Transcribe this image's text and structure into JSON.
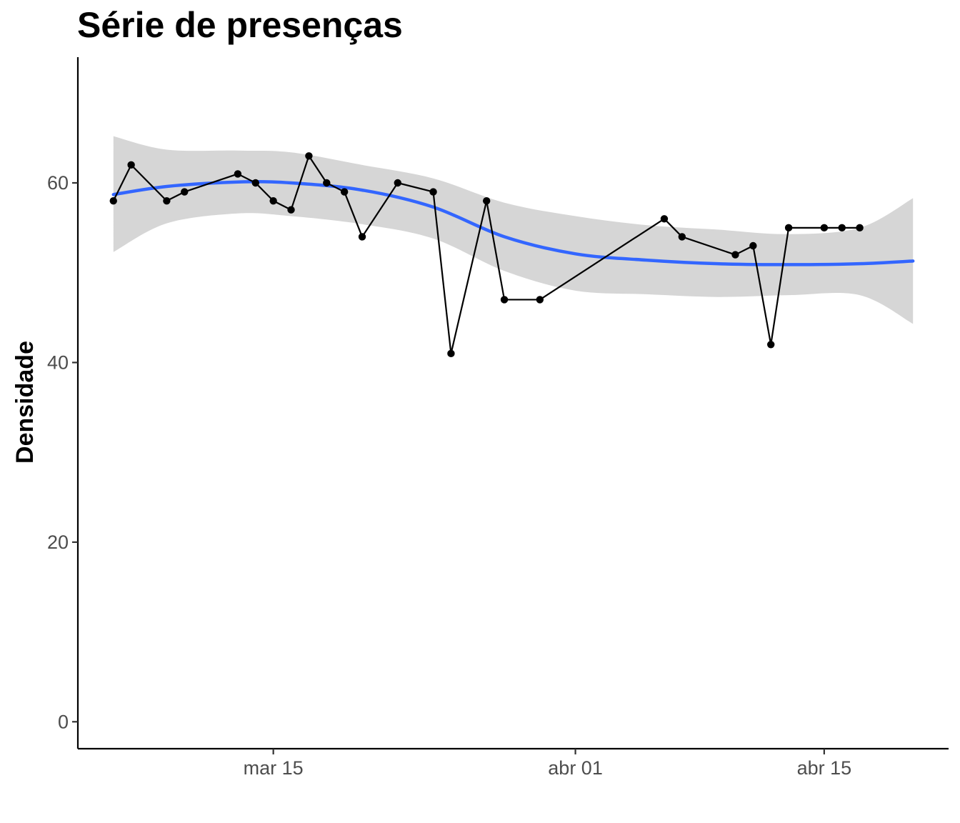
{
  "chart_data": {
    "type": "line",
    "title": "Série de presenças",
    "xlabel": "",
    "ylabel": "Densidade",
    "x_axis_type": "date",
    "ylim": [
      -3,
      74
    ],
    "xlim": [
      "2020-03-04",
      "2020-04-22"
    ],
    "y_ticks": [
      0,
      20,
      40,
      60
    ],
    "x_ticks": [
      {
        "date": "2020-03-15",
        "label": "mar 15"
      },
      {
        "date": "2020-04-01",
        "label": "abr 01"
      },
      {
        "date": "2020-04-15",
        "label": "abr 15"
      }
    ],
    "grid": false,
    "legend": "none",
    "series": [
      {
        "type": "line+points",
        "color": "#000000",
        "x": [
          "2020-03-06",
          "2020-03-07",
          "2020-03-09",
          "2020-03-10",
          "2020-03-13",
          "2020-03-14",
          "2020-03-15",
          "2020-03-16",
          "2020-03-17",
          "2020-03-18",
          "2020-03-19",
          "2020-03-20",
          "2020-03-22",
          "2020-03-24",
          "2020-03-25",
          "2020-03-27",
          "2020-03-28",
          "2020-03-30",
          "2020-04-06",
          "2020-04-07",
          "2020-04-10",
          "2020-04-11",
          "2020-04-12",
          "2020-04-13",
          "2020-04-15",
          "2020-04-16",
          "2020-04-17"
        ],
        "y": [
          58,
          62,
          58,
          59,
          61,
          60,
          58,
          57,
          63,
          60,
          59,
          54,
          60,
          59,
          41,
          58,
          47,
          47,
          56,
          54,
          52,
          53,
          42,
          55,
          55,
          55,
          55
        ]
      },
      {
        "type": "smooth",
        "color": "#3366FF",
        "band_color": "#d6d6d6",
        "x": [
          "2020-03-06",
          "2020-03-09",
          "2020-03-13",
          "2020-03-16",
          "2020-03-20",
          "2020-03-24",
          "2020-03-28",
          "2020-04-01",
          "2020-04-05",
          "2020-04-09",
          "2020-04-13",
          "2020-04-17",
          "2020-04-20"
        ],
        "y": [
          58.7,
          59.6,
          60.1,
          60.0,
          59.2,
          57.3,
          54.0,
          52.1,
          51.4,
          51.0,
          50.9,
          51.0,
          51.3
        ],
        "lower": [
          52.3,
          55.5,
          56.6,
          56.3,
          55.4,
          53.8,
          50.2,
          48.0,
          47.6,
          47.3,
          47.5,
          47.5,
          44.3
        ],
        "upper": [
          65.2,
          63.7,
          63.6,
          63.4,
          62.0,
          60.5,
          57.8,
          56.3,
          55.3,
          54.8,
          54.3,
          55.0,
          58.3
        ]
      }
    ]
  }
}
